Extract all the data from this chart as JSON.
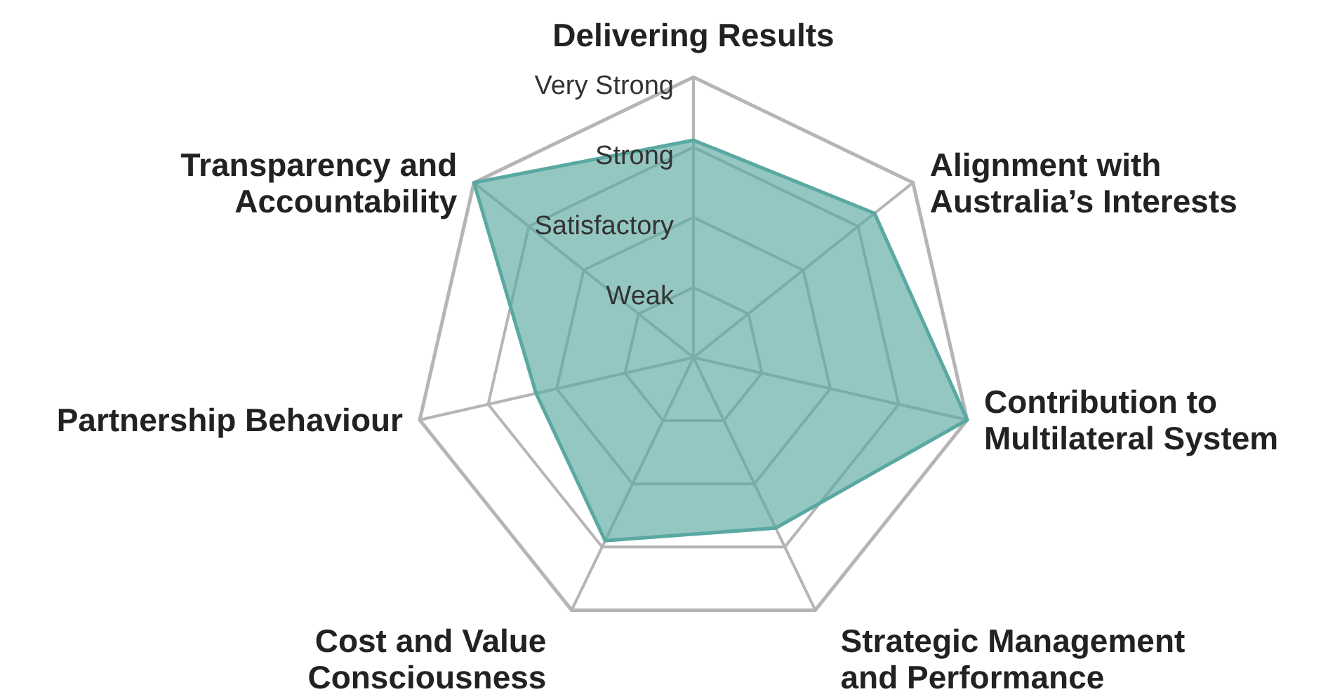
{
  "chart_data": {
    "type": "radar",
    "categories": [
      "Delivering Results",
      "Alignment with\nAustralia’s Interests",
      "Contribution to\nMultilateral System",
      "Strategic Management\nand Performance",
      "Cost and Value\nConsciousness",
      "Partnership Behaviour",
      "Transparency and\nAccountability"
    ],
    "series": [
      {
        "color": "#5aa8a2",
        "values": [
          3.1,
          3.3,
          4,
          2.7,
          2.9,
          2.3,
          4
        ]
      }
    ],
    "ylim": [
      0,
      4
    ],
    "yticks": [
      {
        "value": 1,
        "label": "Weak"
      },
      {
        "value": 2,
        "label": "Satisfactory"
      },
      {
        "value": 3,
        "label": "Strong"
      },
      {
        "value": 4,
        "label": "Very Strong"
      }
    ],
    "grid": true
  }
}
